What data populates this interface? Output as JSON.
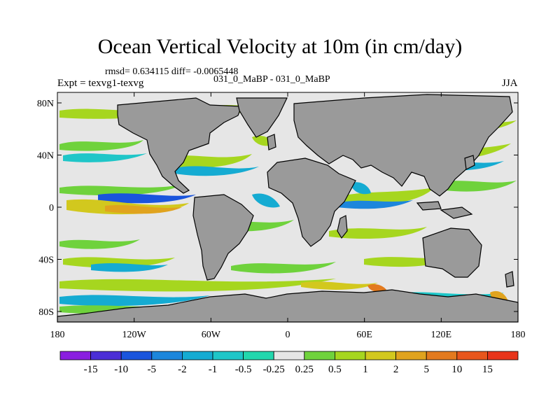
{
  "title": "Ocean Vertical Velocity at 10m (in cm/day)",
  "stats_text": "rmsd= 0.634115 diff= -0.0065448",
  "center_label": "031_0_MaBP - 031_0_MaBP",
  "expt_label": "Expt = texvg1-texvg",
  "season": "JJA",
  "lon_ticks": [
    "180",
    "120W",
    "60W",
    "0",
    "60E",
    "120E",
    "180"
  ],
  "lat_ticks": [
    "80N",
    "40N",
    "0",
    "40S",
    "80S"
  ],
  "colorbar": {
    "levels": [
      "-15",
      "-10",
      "-5",
      "-2",
      "-1",
      "-0.5",
      "-0.25",
      "0.25",
      "0.5",
      "1",
      "2",
      "5",
      "10",
      "15"
    ],
    "colors": [
      "#8a1ee0",
      "#4b2ed6",
      "#1a55dd",
      "#1c86dc",
      "#15abd2",
      "#1fc6c8",
      "#22d7ad",
      "#e6e6e6",
      "#6fd23c",
      "#a6d61f",
      "#d2c81e",
      "#e0a31e",
      "#e37a1e",
      "#e8561c",
      "#e8341a"
    ]
  },
  "map_colors": {
    "land": "#9a9a9a",
    "near_zero": "#e6e6e6",
    "coast": "#000000"
  }
}
